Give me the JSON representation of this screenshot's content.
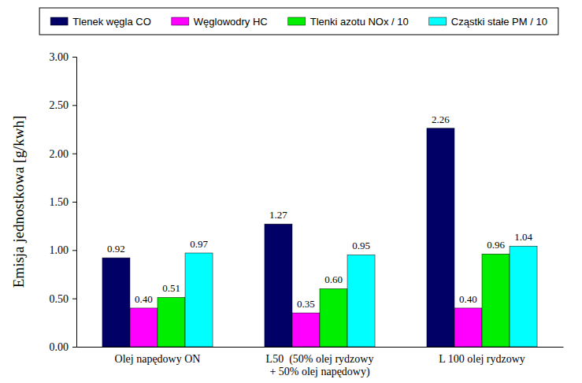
{
  "chart_data": {
    "type": "bar",
    "categories": [
      "Olej napędowy ON",
      "L50  (50% olej rydzowy\n+ 50% olej napędowy)",
      "L 100 olej rydzowy"
    ],
    "series": [
      {
        "name": "Tlenek węgla CO",
        "color": "#000066",
        "values": [
          0.92,
          1.27,
          2.26
        ],
        "value_labels": [
          "0.92",
          "1.27",
          "2.26"
        ]
      },
      {
        "name": "Węglowodry HC",
        "color": "#ff00ff",
        "values": [
          0.4,
          0.35,
          0.4
        ],
        "value_labels": [
          "0.40",
          "0.35",
          "0.40"
        ]
      },
      {
        "name": "Tlenki azotu NOx / 10",
        "color": "#00ee00",
        "values": [
          0.51,
          0.6,
          0.96
        ],
        "value_labels": [
          "0.51",
          "0.60",
          "0.96"
        ]
      },
      {
        "name": "Cząstki stałe PM / 10",
        "color": "#00ffff",
        "values": [
          0.97,
          0.95,
          1.04
        ],
        "value_labels": [
          "0.97",
          "0.95",
          "1.04"
        ]
      }
    ],
    "y_label": "Emisja jednostkowa [g/kwh]",
    "ylim": [
      0,
      3
    ],
    "yticks": [
      {
        "value": 0,
        "label": "0.00"
      },
      {
        "value": 0.5,
        "label": "0.50"
      },
      {
        "value": 1,
        "label": "1.00"
      },
      {
        "value": 1.5,
        "label": "1.50"
      },
      {
        "value": 2,
        "label": "2.00"
      },
      {
        "value": 2.5,
        "label": "2.50"
      },
      {
        "value": 3,
        "label": "3.00"
      }
    ],
    "grid": false,
    "legend": "top",
    "data_labels": true
  }
}
